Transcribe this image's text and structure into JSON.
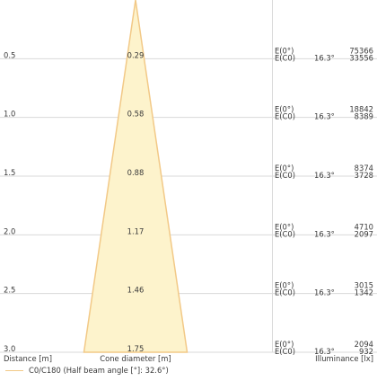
{
  "chart_data": {
    "type": "cone-diagram",
    "title": "",
    "distance_header": "Distance [m]",
    "diameter_header": "Cone diameter [m]",
    "illuminance_header": "Illuminance [lx]",
    "half_beam_angle": "16.3°",
    "label_center": "E(0°)",
    "label_c0": "E(C0)",
    "legend_label": "C0/C180 (Half beam angle [°]: 32.6°)",
    "colors": {
      "cone_fill": "#fdf3cc",
      "cone_stroke": "#f2c987",
      "grid": "#d9d9d9"
    },
    "rows": [
      {
        "distance": "0.5",
        "diameter": "0.29",
        "e_center": "75366",
        "e_c0": "33556"
      },
      {
        "distance": "1.0",
        "diameter": "0.58",
        "e_center": "18842",
        "e_c0": "8389"
      },
      {
        "distance": "1.5",
        "diameter": "0.88",
        "e_center": "8374",
        "e_c0": "3728"
      },
      {
        "distance": "2.0",
        "diameter": "1.17",
        "e_center": "4710",
        "e_c0": "2097"
      },
      {
        "distance": "2.5",
        "diameter": "1.46",
        "e_center": "3015",
        "e_c0": "1342"
      },
      {
        "distance": "3.0",
        "diameter": "1.75",
        "e_center": "2094",
        "e_c0": "932"
      }
    ]
  }
}
